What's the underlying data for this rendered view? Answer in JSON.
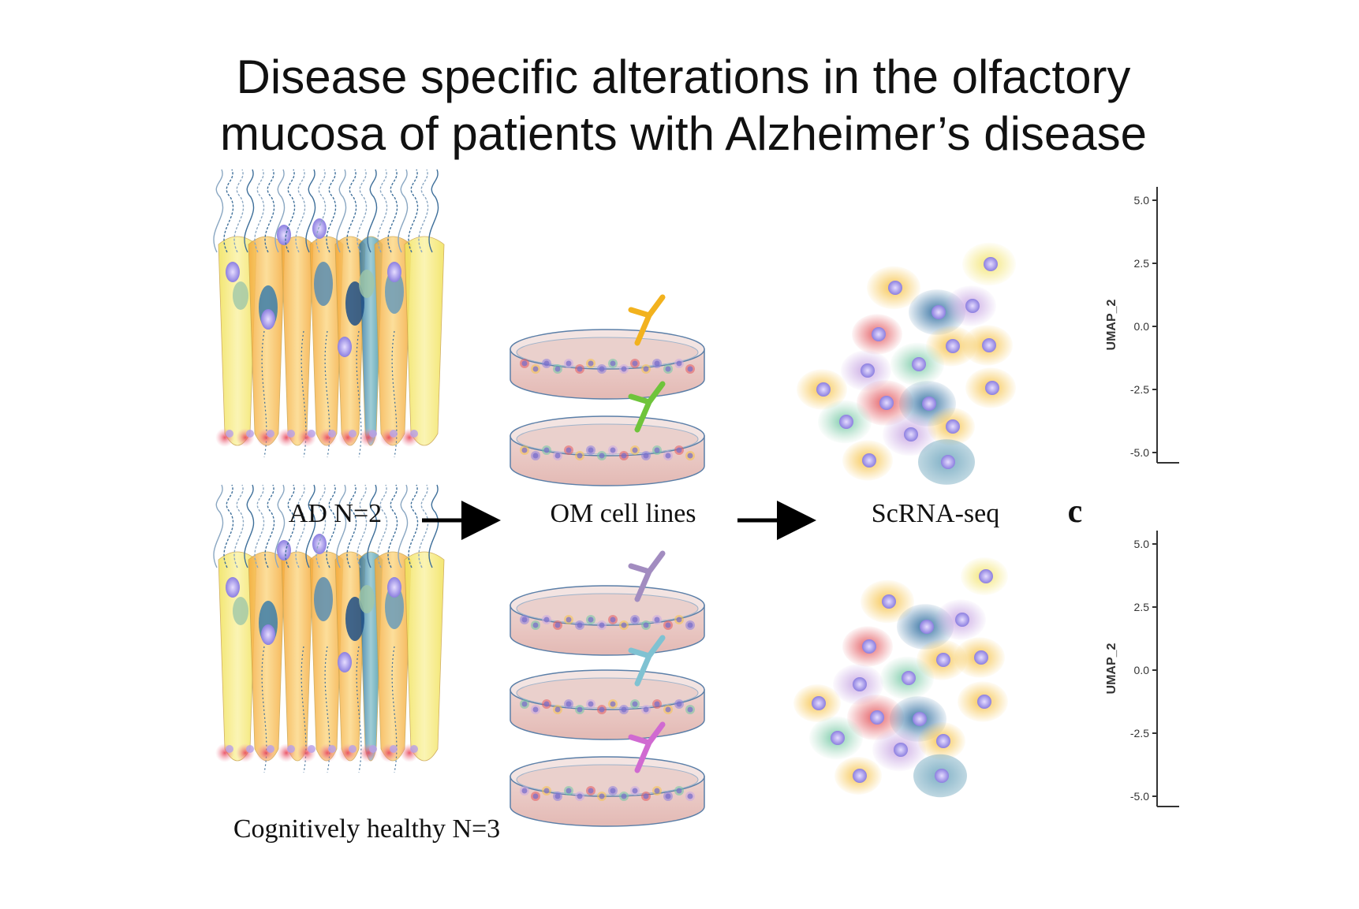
{
  "title": {
    "line1": "Disease specific alterations in the olfactory",
    "line2": "mucosa of patients with Alzheimer’s disease"
  },
  "groups": {
    "ad": "AD N=2",
    "healthy": "Cognitively healthy N=3"
  },
  "steps": {
    "cell_lines": "OM cell lines",
    "sequencing": "ScRNA-seq"
  },
  "panel_letter": "c",
  "umap": {
    "axis_label": "UMAP_2",
    "ticks": [
      "5.0",
      "2.5",
      "0.0",
      "-2.5",
      "-5.0"
    ]
  },
  "colors": {
    "antibodies": [
      "#f2b21e",
      "#6fc43b",
      "#a28cc0",
      "#7fc2d2",
      "#d06ad1"
    ],
    "cells": [
      "#f6c34a",
      "#9fd0c8",
      "#c9a8e3",
      "#e35a60",
      "#2f6ea0",
      "#9ed6b8",
      "#f3e470",
      "#7fb0c4"
    ]
  }
}
